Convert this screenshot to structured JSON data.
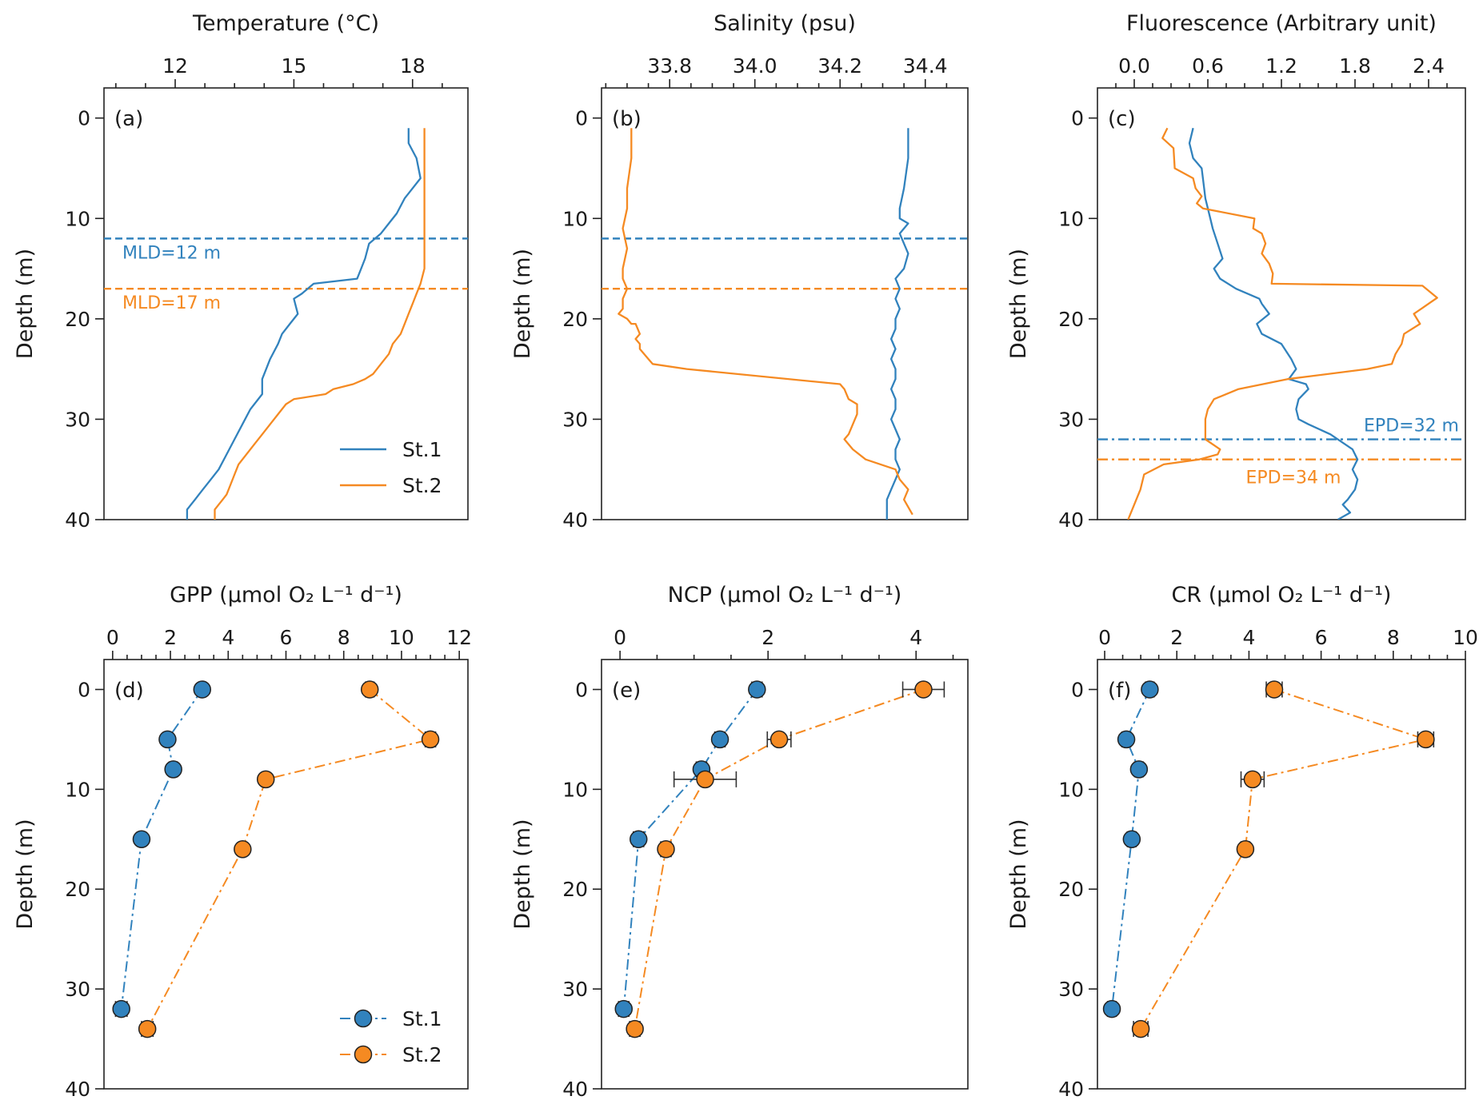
{
  "colors": {
    "st1": "#3182bd",
    "st2": "#f58a22",
    "axis": "#222222"
  },
  "chart_data": [
    {
      "id": "a",
      "panel_label": "(a)",
      "type": "line",
      "title": "Temperature (°C)",
      "xlabel": "Temperature (°C)",
      "ylabel": "Depth (m)",
      "xlim": [
        10.2,
        19.4
      ],
      "ylim": [
        40,
        -3
      ],
      "xticks": [
        12,
        15,
        18
      ],
      "xtick_labels": [
        "12",
        "15",
        "18"
      ],
      "xminor": [
        10.5,
        11.25,
        12.75,
        13.5,
        14.25,
        15.75,
        16.5,
        17.25,
        18.75
      ],
      "yticks": [
        0,
        10,
        20,
        30,
        40
      ],
      "ytick_labels": [
        "0",
        "10",
        "20",
        "30",
        "40"
      ],
      "series": [
        {
          "name": "St.1",
          "color_key": "st1",
          "style": "solid",
          "x": [
            17.9,
            17.9,
            18.1,
            18.2,
            17.8,
            17.6,
            17.4,
            17.2,
            16.9,
            16.8,
            16.7,
            16.6,
            15.5,
            15.2,
            15.0,
            15.1,
            14.9,
            14.7,
            14.6,
            14.4,
            14.3,
            14.2,
            14.2,
            13.9,
            13.7,
            13.5,
            13.3,
            13.1,
            12.9,
            12.7,
            12.6,
            12.5,
            12.4,
            12.3,
            12.3
          ],
          "y": [
            1,
            2.5,
            4,
            6,
            8,
            9.5,
            10.5,
            11.5,
            12.5,
            14,
            15,
            16,
            16.5,
            17.5,
            18,
            19.5,
            20.5,
            21.5,
            22.5,
            24,
            25,
            26,
            27.5,
            29,
            30.5,
            32,
            33.5,
            35,
            36,
            37,
            37.5,
            38,
            38.5,
            39,
            40
          ]
        },
        {
          "name": "St.2",
          "color_key": "st2",
          "style": "solid",
          "x": [
            18.3,
            18.3,
            18.3,
            18.3,
            18.3,
            18.3,
            18.2,
            18.1,
            18.0,
            17.9,
            17.8,
            17.7,
            17.5,
            17.4,
            17.2,
            17.0,
            16.8,
            16.5,
            16.0,
            15.8,
            15.0,
            14.8,
            14.6,
            14.4,
            14.2,
            14.0,
            13.8,
            13.6,
            13.5,
            13.4,
            13.3,
            13.2,
            13.1,
            13.0,
            13.0
          ],
          "y": [
            1,
            3,
            6,
            9,
            12,
            15,
            16.5,
            17.5,
            18.5,
            19.5,
            20.5,
            21.5,
            22.5,
            23.5,
            24.5,
            25.5,
            26,
            26.5,
            27,
            27.5,
            28,
            28.5,
            29.5,
            30.5,
            31.5,
            32.5,
            33.5,
            34.5,
            35.5,
            36.5,
            37.5,
            38,
            38.5,
            39,
            40
          ]
        }
      ],
      "hlines": [
        {
          "y": 12,
          "color_key": "st1",
          "style": "dashed",
          "label": "MLD=12 m",
          "label_pos": "left-below"
        },
        {
          "y": 17,
          "color_key": "st2",
          "style": "dashed",
          "label": "MLD=17 m",
          "label_pos": "left-below"
        }
      ],
      "legend": {
        "placement": "lower-right",
        "marker": "line",
        "entries": [
          {
            "label": "St.1",
            "color_key": "st1"
          },
          {
            "label": "St.2",
            "color_key": "st2"
          }
        ]
      }
    },
    {
      "id": "b",
      "panel_label": "(b)",
      "type": "line",
      "title": "Salinity (psu)",
      "xlabel": "Salinity (psu)",
      "ylabel": "Depth (m)",
      "xlim": [
        33.64,
        34.5
      ],
      "ylim": [
        40,
        -3
      ],
      "xticks": [
        33.8,
        34.0,
        34.2,
        34.4
      ],
      "xtick_labels": [
        "33.8",
        "34.0",
        "34.2",
        "34.4"
      ],
      "xminor": [
        33.65,
        33.7,
        33.75,
        33.85,
        33.9,
        33.95,
        34.05,
        34.1,
        34.15,
        34.25,
        34.3,
        34.35,
        34.45
      ],
      "yticks": [
        0,
        10,
        20,
        30,
        40
      ],
      "ytick_labels": [
        "0",
        "10",
        "20",
        "30",
        "40"
      ],
      "series": [
        {
          "name": "St.1",
          "color_key": "st1",
          "style": "solid",
          "x": [
            34.36,
            34.36,
            34.35,
            34.34,
            34.34,
            34.36,
            34.34,
            34.35,
            34.36,
            34.35,
            34.34,
            34.33,
            34.34,
            34.33,
            34.34,
            34.33,
            34.33,
            34.32,
            34.33,
            34.32,
            34.33,
            34.33,
            34.32,
            34.33,
            34.33,
            34.32,
            34.33,
            34.34,
            34.33,
            34.33,
            34.34,
            34.33,
            34.32,
            34.31,
            34.31
          ],
          "y": [
            1,
            4,
            7,
            9,
            10,
            10.5,
            11.5,
            12.5,
            13.5,
            15,
            15.5,
            16,
            17,
            18,
            19,
            20,
            21,
            22,
            23,
            24,
            25,
            26,
            27,
            28,
            29,
            30,
            31,
            32,
            33,
            34,
            35,
            36,
            37,
            38,
            40
          ]
        },
        {
          "name": "St.2",
          "color_key": "st2",
          "style": "solid",
          "x": [
            33.71,
            33.71,
            33.7,
            33.7,
            33.69,
            33.7,
            33.69,
            33.69,
            33.7,
            33.69,
            33.69,
            33.69,
            33.68,
            33.7,
            33.71,
            33.72,
            33.73,
            33.72,
            33.73,
            33.73,
            33.75,
            33.76,
            33.84,
            34.2,
            34.21,
            34.22,
            34.24,
            34.24,
            34.23,
            34.22,
            34.21,
            34.23,
            34.26,
            34.33,
            34.34,
            34.36,
            34.35,
            34.37
          ],
          "y": [
            1,
            4,
            7,
            9,
            11,
            13,
            15,
            16,
            17,
            18,
            18.5,
            19,
            19.5,
            20,
            20.5,
            20.5,
            21.5,
            22,
            22.5,
            23,
            24,
            24.5,
            25,
            26.5,
            27,
            28,
            28.5,
            29.5,
            30.5,
            31.5,
            32,
            33,
            34,
            35,
            36,
            37,
            38,
            39.5
          ]
        }
      ],
      "hlines": [
        {
          "y": 12,
          "color_key": "st1",
          "style": "dashed"
        },
        {
          "y": 17,
          "color_key": "st2",
          "style": "dashed"
        }
      ]
    },
    {
      "id": "c",
      "panel_label": "(c)",
      "type": "line",
      "title": "Fluorescence (Arbitrary unit)",
      "xlabel": "Fluorescence (Arbitrary unit)",
      "ylabel": "Depth (m)",
      "xlim": [
        -0.3,
        2.7
      ],
      "ylim": [
        40,
        -3
      ],
      "xticks": [
        0.0,
        0.6,
        1.2,
        1.8,
        2.4
      ],
      "xtick_labels": [
        "0.0",
        "0.6",
        "1.2",
        "1.8",
        "2.4"
      ],
      "xminor": [
        -0.15,
        0.15,
        0.3,
        0.45,
        0.75,
        0.9,
        1.05,
        1.35,
        1.5,
        1.65,
        1.95,
        2.1,
        2.25,
        2.55
      ],
      "yticks": [
        0,
        10,
        20,
        30,
        40
      ],
      "ytick_labels": [
        "0",
        "10",
        "20",
        "30",
        "40"
      ],
      "series": [
        {
          "name": "St.1",
          "color_key": "st1",
          "style": "solid",
          "x": [
            0.48,
            0.45,
            0.48,
            0.55,
            0.57,
            0.58,
            0.62,
            0.64,
            0.68,
            0.72,
            0.65,
            0.7,
            0.83,
            1.02,
            1.04,
            1.1,
            1.0,
            1.04,
            1.2,
            1.28,
            1.32,
            1.26,
            1.4,
            1.42,
            1.34,
            1.32,
            1.34,
            1.42,
            1.6,
            1.78,
            1.82,
            1.78,
            1.82,
            1.8,
            1.74,
            1.7,
            1.76,
            1.66
          ],
          "y": [
            1,
            2.5,
            4,
            5,
            7,
            8,
            10,
            11,
            12.5,
            14,
            15,
            16,
            17,
            18,
            18.5,
            19.5,
            20.5,
            21.5,
            22.5,
            24,
            25,
            26,
            26.5,
            27,
            28,
            29,
            30,
            30.5,
            31.5,
            33,
            34,
            35,
            36,
            37,
            38,
            38.5,
            39.3,
            40
          ]
        },
        {
          "name": "St.2",
          "color_key": "st2",
          "style": "solid",
          "x": [
            0.27,
            0.23,
            0.32,
            0.33,
            0.48,
            0.5,
            0.55,
            0.51,
            0.56,
            0.98,
            0.97,
            1.04,
            1.07,
            1.04,
            1.1,
            1.13,
            1.12,
            2.35,
            2.47,
            2.28,
            2.33,
            2.2,
            2.18,
            2.13,
            2.1,
            1.9,
            1.25,
            0.85,
            0.65,
            0.6,
            0.58,
            0.58,
            0.7,
            0.68,
            0.53,
            0.24,
            0.08,
            0.05,
            0.0,
            -0.05
          ],
          "y": [
            1,
            2,
            3,
            5,
            6,
            7,
            7.8,
            8.5,
            9,
            10,
            11,
            11.5,
            12.5,
            13.5,
            14.5,
            15.5,
            16.5,
            16.7,
            17.9,
            19.5,
            20.5,
            21.5,
            22.5,
            23.5,
            24.5,
            25,
            26,
            27,
            28,
            29,
            30,
            32,
            33,
            33.5,
            34,
            34.5,
            35.5,
            37,
            38.5,
            40
          ]
        }
      ],
      "hlines": [
        {
          "y": 32,
          "color_key": "st1",
          "style": "dashdot",
          "label": "EPD=32 m",
          "label_pos": "right-above"
        },
        {
          "y": 34,
          "color_key": "st2",
          "style": "dashdot",
          "label": "EPD=34 m",
          "label_pos": "center-below"
        }
      ]
    },
    {
      "id": "d",
      "panel_label": "(d)",
      "type": "scatter-line",
      "title": "GPP (µmol O₂ L⁻¹ d⁻¹)",
      "xlabel": "GPP (µmol O₂ L⁻¹ d⁻¹)",
      "ylabel": "Depth (m)",
      "xlim": [
        -0.3,
        12.3
      ],
      "ylim": [
        40,
        -3
      ],
      "xticks": [
        0,
        2,
        4,
        6,
        8,
        10,
        12
      ],
      "xtick_labels": [
        "0",
        "2",
        "4",
        "6",
        "8",
        "10",
        "12"
      ],
      "xminor": [
        0.5,
        1,
        1.5,
        2.5,
        3,
        3.5,
        4.5,
        5,
        5.5,
        6.5,
        7,
        7.5,
        8.5,
        9,
        9.5,
        10.5,
        11,
        11.5
      ],
      "yticks": [
        0,
        10,
        20,
        30,
        40
      ],
      "ytick_labels": [
        "0",
        "10",
        "20",
        "30",
        "40"
      ],
      "series": [
        {
          "name": "St.1",
          "color_key": "st1",
          "style": "dashdot",
          "x": [
            3.1,
            1.9,
            2.1,
            1.0,
            0.3
          ],
          "y": [
            0,
            5,
            8,
            15,
            32
          ],
          "xerr": [
            0.12,
            0.12,
            0.14,
            0.12,
            0.2
          ]
        },
        {
          "name": "St.2",
          "color_key": "st2",
          "style": "dashdot",
          "x": [
            8.9,
            11.0,
            5.3,
            4.5,
            1.2
          ],
          "y": [
            0,
            5,
            9,
            16,
            34
          ],
          "xerr": [
            0.15,
            0.18,
            0.12,
            0.12,
            0.2
          ]
        }
      ],
      "legend": {
        "placement": "lower-right",
        "marker": "circle",
        "entries": [
          {
            "label": "St.1",
            "color_key": "st1"
          },
          {
            "label": "St.2",
            "color_key": "st2"
          }
        ]
      }
    },
    {
      "id": "e",
      "panel_label": "(e)",
      "type": "scatter-line",
      "title": "NCP (µmol O₂ L⁻¹ d⁻¹)",
      "xlabel": "NCP (µmol O₂ L⁻¹ d⁻¹)",
      "ylabel": "Depth (m)",
      "xlim": [
        -0.25,
        4.7
      ],
      "ylim": [
        40,
        -3
      ],
      "xticks": [
        0,
        2,
        4
      ],
      "xtick_labels": [
        "0",
        "2",
        "4"
      ],
      "xminor": [
        0.5,
        1,
        1.5,
        2.5,
        3,
        3.5,
        4.5
      ],
      "yticks": [
        0,
        10,
        20,
        30,
        40
      ],
      "ytick_labels": [
        "0",
        "10",
        "20",
        "30",
        "40"
      ],
      "series": [
        {
          "name": "St.1",
          "color_key": "st1",
          "style": "dashdot",
          "x": [
            1.85,
            1.35,
            1.1,
            0.25,
            0.05
          ],
          "y": [
            0,
            5,
            8,
            15,
            32
          ],
          "xerr": [
            0.07,
            0.07,
            0.07,
            0.07,
            0.07
          ]
        },
        {
          "name": "St.2",
          "color_key": "st2",
          "style": "dashdot",
          "x": [
            4.1,
            2.15,
            1.15,
            0.62,
            0.2
          ],
          "y": [
            0,
            5,
            9,
            16,
            34
          ],
          "xerr": [
            0.28,
            0.16,
            0.42,
            0.07,
            0.07
          ]
        }
      ]
    },
    {
      "id": "f",
      "panel_label": "(f)",
      "type": "scatter-line",
      "title": "CR (µmol O₂ L⁻¹ d⁻¹)",
      "xlabel": "CR (µmol O₂ L⁻¹ d⁻¹)",
      "ylabel": "Depth (m)",
      "xlim": [
        -0.2,
        10.0
      ],
      "ylim": [
        40,
        -3
      ],
      "xticks": [
        0,
        2,
        4,
        6,
        8,
        10
      ],
      "xtick_labels": [
        "0",
        "2",
        "4",
        "6",
        "8",
        "10"
      ],
      "xminor": [
        0.5,
        1,
        1.5,
        2.5,
        3,
        3.5,
        4.5,
        5,
        5.5,
        6.5,
        7,
        7.5,
        8.5,
        9,
        9.5
      ],
      "yticks": [
        0,
        10,
        20,
        30,
        40
      ],
      "ytick_labels": [
        "0",
        "10",
        "20",
        "30",
        "40"
      ],
      "series": [
        {
          "name": "St.1",
          "color_key": "st1",
          "style": "dashdot",
          "x": [
            1.25,
            0.6,
            0.95,
            0.75,
            0.2
          ],
          "y": [
            0,
            5,
            8,
            15,
            32
          ],
          "xerr": [
            0.12,
            0.12,
            0.12,
            0.12,
            0.12
          ]
        },
        {
          "name": "St.2",
          "color_key": "st2",
          "style": "dashdot",
          "x": [
            4.7,
            8.9,
            4.1,
            3.9,
            1.0
          ],
          "y": [
            0,
            5,
            9,
            16,
            34
          ],
          "xerr": [
            0.22,
            0.22,
            0.32,
            0.12,
            0.2
          ]
        }
      ]
    }
  ]
}
